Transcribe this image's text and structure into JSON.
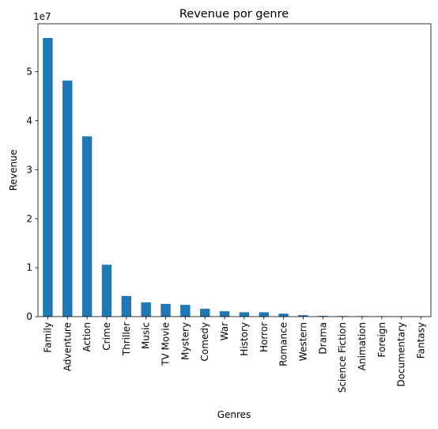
{
  "chart_data": {
    "type": "bar",
    "title": "Revenue por genre",
    "xlabel": "Genres",
    "ylabel": "Revenue",
    "y_scale_label": "1e7",
    "y_tick_values": [
      0,
      1,
      2,
      3,
      4,
      5
    ],
    "y_tick_labels": [
      "0",
      "1",
      "2",
      "3",
      "4",
      "5"
    ],
    "ylim": [
      0,
      5.98
    ],
    "y_unit_multiplier": 10000000,
    "bar_color": "#1f77b4",
    "categories": [
      "Family",
      "Adventure",
      "Action",
      "Crime",
      "Thriller",
      "Music",
      "TV Movie",
      "Mystery",
      "Comedy",
      "War",
      "History",
      "Horror",
      "Romance",
      "Western",
      "Drama",
      "Science Fiction",
      "Animation",
      "Foreign",
      "Documentary",
      "Fantasy"
    ],
    "values": [
      5.69,
      4.82,
      3.68,
      1.06,
      0.42,
      0.29,
      0.26,
      0.24,
      0.16,
      0.11,
      0.09,
      0.09,
      0.06,
      0.03,
      0.015,
      0.012,
      0.01,
      0.008,
      0.006,
      0.005
    ]
  }
}
